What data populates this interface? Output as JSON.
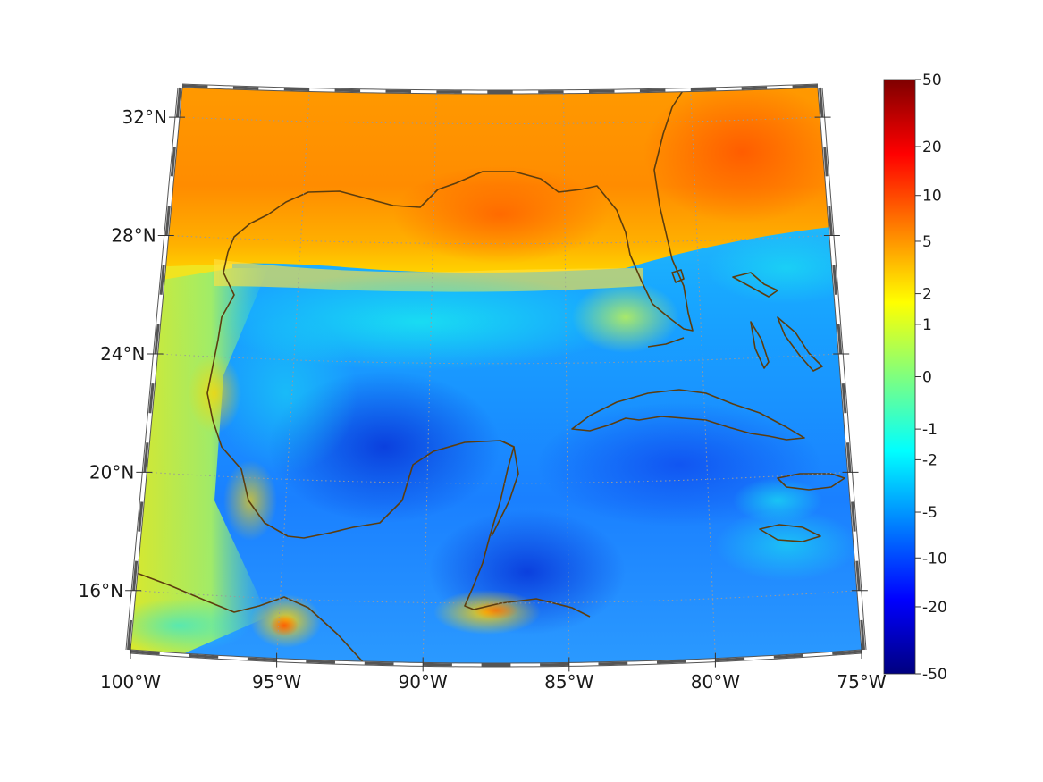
{
  "map": {
    "projection": "conic",
    "lon_range": [
      -100,
      -75
    ],
    "lat_range": [
      14,
      33
    ],
    "lon_ticks": [
      {
        "value": -100,
        "label": "100°W"
      },
      {
        "value": -95,
        "label": "95°W"
      },
      {
        "value": -90,
        "label": "90°W"
      },
      {
        "value": -85,
        "label": "85°W"
      },
      {
        "value": -80,
        "label": "80°W"
      },
      {
        "value": -75,
        "label": "75°W"
      }
    ],
    "lat_ticks": [
      {
        "value": 32,
        "label": "32°N"
      },
      {
        "value": 28,
        "label": "28°N"
      },
      {
        "value": 24,
        "label": "24°N"
      },
      {
        "value": 20,
        "label": "20°N"
      },
      {
        "value": 16,
        "label": "16°N"
      }
    ],
    "graticule": "dotted",
    "coastline_color": "#5c3d0e",
    "colormap": "jet"
  },
  "colorbar": {
    "scale": "symmetric-log",
    "ticks": [
      {
        "value": 50,
        "label": "50"
      },
      {
        "value": 20,
        "label": "20"
      },
      {
        "value": 10,
        "label": "10"
      },
      {
        "value": 5,
        "label": "5"
      },
      {
        "value": 2,
        "label": "2"
      },
      {
        "value": 1,
        "label": "1"
      },
      {
        "value": 0,
        "label": "0"
      },
      {
        "value": -1,
        "label": "-1"
      },
      {
        "value": -2,
        "label": "-2"
      },
      {
        "value": -5,
        "label": "-5"
      },
      {
        "value": -10,
        "label": "-10"
      },
      {
        "value": -20,
        "label": "-20"
      },
      {
        "value": -50,
        "label": "-50"
      }
    ]
  }
}
